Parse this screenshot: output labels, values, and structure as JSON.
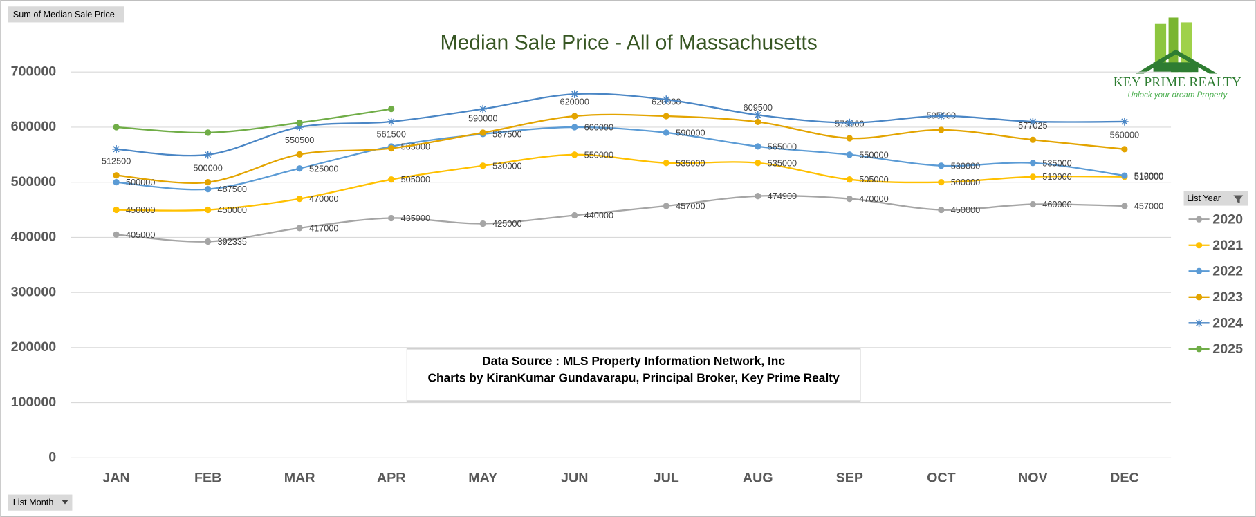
{
  "chart_data": {
    "type": "line",
    "title": "Median Sale Price - All of Massachusetts",
    "field_button": "Sum of Median Sale Price",
    "axis_button": "List Month",
    "legend_title": "List Year",
    "source_lines": [
      "Data Source : MLS Property Information Network, Inc",
      "Charts by KiranKumar Gundavarapu, Principal Broker, Key Prime Realty"
    ],
    "logo": {
      "name": "Key Prime Realty",
      "tagline": "Unlock your dream Property"
    },
    "categories": [
      "JAN",
      "FEB",
      "MAR",
      "APR",
      "MAY",
      "JUN",
      "JUL",
      "AUG",
      "SEP",
      "OCT",
      "NOV",
      "DEC"
    ],
    "ylim": [
      0,
      700000
    ],
    "yticks": [
      0,
      100000,
      200000,
      300000,
      400000,
      500000,
      600000,
      700000
    ],
    "grid": true,
    "legend": "right",
    "series": [
      {
        "name": "2020",
        "color": "#a5a5a5",
        "marker": "circle",
        "label_position": "right",
        "values": [
          405000,
          392335,
          417000,
          435000,
          425000,
          440000,
          457000,
          474900,
          470000,
          450000,
          460000,
          457000
        ]
      },
      {
        "name": "2021",
        "color": "#ffc000",
        "marker": "circle",
        "label_position": "right",
        "values": [
          450000,
          450000,
          470000,
          505000,
          530000,
          550000,
          535000,
          535000,
          505000,
          500000,
          510000,
          510000
        ]
      },
      {
        "name": "2022",
        "color": "#5b9bd5",
        "marker": "circle",
        "label_position": "right",
        "values": [
          500000,
          487500,
          525000,
          565000,
          587500,
          600000,
          590000,
          565000,
          550000,
          530000,
          535000,
          512000
        ]
      },
      {
        "name": "2023",
        "color": "#e3a400",
        "marker": "circle",
        "label_position": "above",
        "values": [
          512500,
          500000,
          550500,
          561500,
          590000,
          620000,
          620000,
          609500,
          579900,
          595000,
          577025,
          560000
        ]
      },
      {
        "name": "2024",
        "color": "#4a86c5",
        "marker": "star",
        "values": [
          560000,
          550000,
          600000,
          610000,
          633000,
          660000,
          650000,
          622000,
          608000,
          620000,
          610000,
          610000
        ]
      },
      {
        "name": "2025",
        "color": "#70ad47",
        "marker": "circle",
        "values": [
          600000,
          590000,
          608000,
          633000,
          null,
          null,
          null,
          null,
          null,
          null,
          null,
          null
        ]
      }
    ]
  }
}
